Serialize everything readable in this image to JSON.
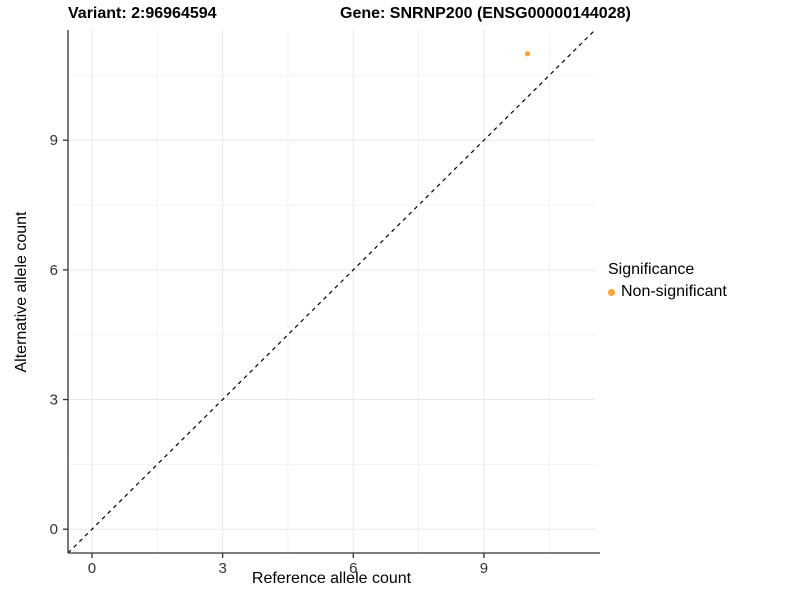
{
  "chart_data": {
    "type": "scatter",
    "title_left": "Variant: 2:96964594",
    "title_right": "Gene: SNRNP200 (ENSG00000144028)",
    "xlabel": "Reference allele count",
    "ylabel": "Alternative allele count",
    "xlim": [
      -0.55,
      11.55
    ],
    "ylim": [
      -0.55,
      11.55
    ],
    "xticks": [
      0,
      3,
      6,
      9
    ],
    "yticks": [
      0,
      3,
      6,
      9
    ],
    "minor_ticks": [
      1.5,
      4.5,
      7.5,
      10.5
    ],
    "grid": true,
    "identity_line": true,
    "points": [
      {
        "x": 10,
        "y": 11,
        "series": "Non-significant"
      }
    ],
    "legend": {
      "position": "right",
      "title": "Significance",
      "items": [
        {
          "label": "Non-significant",
          "color": "#FAA43A"
        }
      ]
    },
    "colors": {
      "point": "#FAA43A",
      "grid_major": "#E8E8E8",
      "grid_minor": "#F3F3F3",
      "axis_line": "#333333",
      "tick_label": "#333333",
      "identity_line": "#000000",
      "background": "#FFFFFF"
    }
  }
}
